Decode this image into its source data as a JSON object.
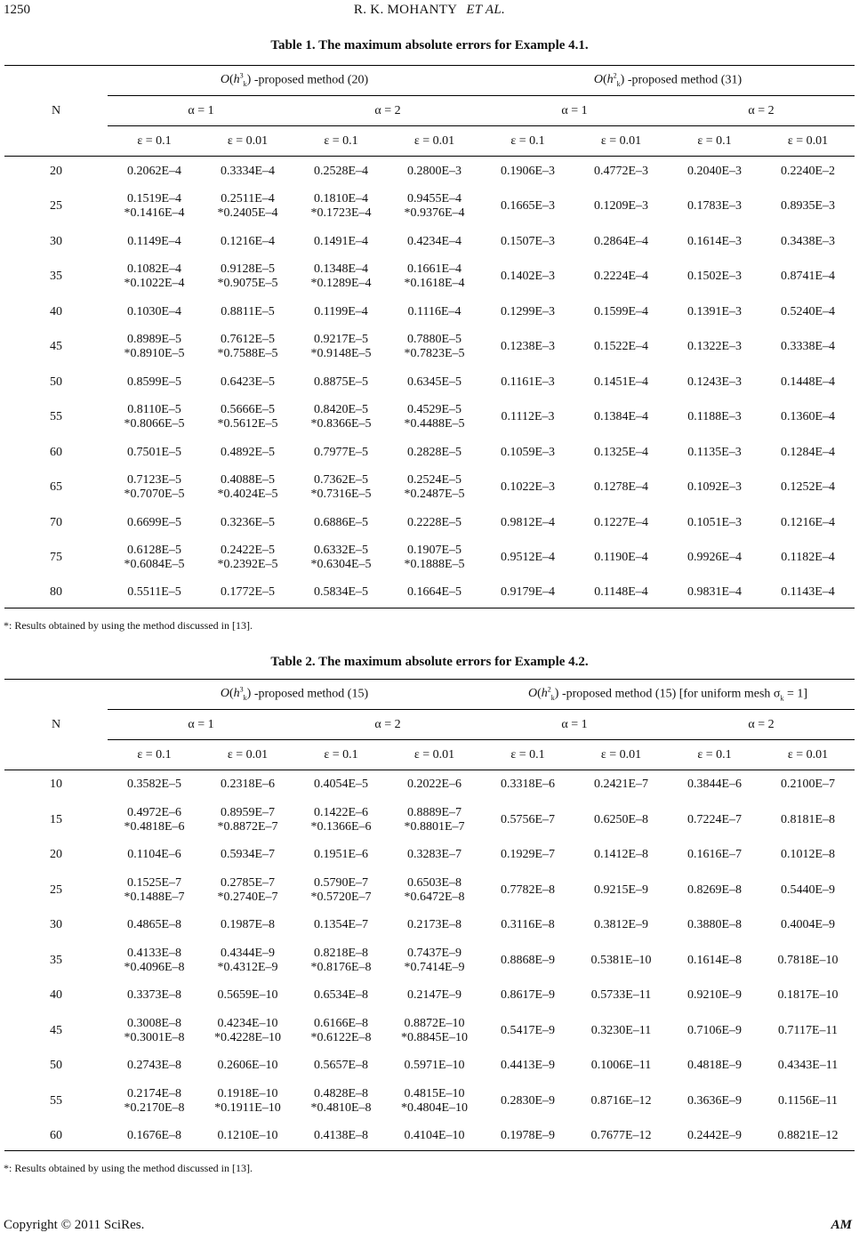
{
  "page": {
    "number": "1250",
    "running_head": "R. K. MOHANTY",
    "running_head_italic": "ET   AL.",
    "copyright": "Copyright © 2011 SciRes.",
    "journal": "AM"
  },
  "table1": {
    "title": "Table 1. The maximum absolute errors for Example 4.1.",
    "n_header": "N",
    "methods": [
      {
        "O": "O",
        "base": "h",
        "sub": "k",
        "sup": "3",
        "label": " -proposed method (20)"
      },
      {
        "O": "O",
        "base": "h",
        "sub": "k",
        "sup": "2",
        "label": " -proposed method (31)"
      }
    ],
    "alphas": [
      "α = 1",
      "α = 2",
      "α = 1",
      "α = 2"
    ],
    "epsilons": [
      "ε = 0.1",
      "ε = 0.01",
      "ε = 0.1",
      "ε = 0.01",
      "ε = 0.1",
      "ε = 0.01",
      "ε = 0.1",
      "ε = 0.01"
    ],
    "rows": [
      {
        "n": "20",
        "cells": [
          "0.2062E–4",
          "0.3334E–4",
          "0.2528E–4",
          "0.2800E–3",
          "0.1906E–3",
          "0.4772E–3",
          "0.2040E–3",
          "0.2240E–2"
        ]
      },
      {
        "n": "25",
        "cells": [
          [
            "0.1519E–4",
            "*0.1416E–4"
          ],
          [
            "0.2511E–4",
            "*0.2405E–4"
          ],
          [
            "0.1810E–4",
            "*0.1723E–4"
          ],
          [
            "0.9455E–4",
            "*0.9376E–4"
          ],
          "0.1665E–3",
          "0.1209E–3",
          "0.1783E–3",
          "0.8935E–3"
        ]
      },
      {
        "n": "30",
        "cells": [
          "0.1149E–4",
          "0.1216E–4",
          "0.1491E–4",
          "0.4234E–4",
          "0.1507E–3",
          "0.2864E–4",
          "0.1614E–3",
          "0.3438E–3"
        ]
      },
      {
        "n": "35",
        "cells": [
          [
            "0.1082E–4",
            "*0.1022E–4"
          ],
          [
            "0.9128E–5",
            "*0.9075E–5"
          ],
          [
            "0.1348E–4",
            "*0.1289E–4"
          ],
          [
            "0.1661E–4",
            "*0.1618E–4"
          ],
          "0.1402E–3",
          "0.2224E–4",
          "0.1502E–3",
          "0.8741E–4"
        ]
      },
      {
        "n": "40",
        "cells": [
          "0.1030E–4",
          "0.8811E–5",
          "0.1199E–4",
          "0.1116E–4",
          "0.1299E–3",
          "0.1599E–4",
          "0.1391E–3",
          "0.5240E–4"
        ]
      },
      {
        "n": "45",
        "cells": [
          [
            "0.8989E–5",
            "*0.8910E–5"
          ],
          [
            "0.7612E–5",
            "*0.7588E–5"
          ],
          [
            "0.9217E–5",
            "*0.9148E–5"
          ],
          [
            "0.7880E–5",
            "*0.7823E–5"
          ],
          "0.1238E–3",
          "0.1522E–4",
          "0.1322E–3",
          "0.3338E–4"
        ]
      },
      {
        "n": "50",
        "cells": [
          "0.8599E–5",
          "0.6423E–5",
          "0.8875E–5",
          "0.6345E–5",
          "0.1161E–3",
          "0.1451E–4",
          "0.1243E–3",
          "0.1448E–4"
        ]
      },
      {
        "n": "55",
        "cells": [
          [
            "0.8110E–5",
            "*0.8066E–5"
          ],
          [
            "0.5666E–5",
            "*0.5612E–5"
          ],
          [
            "0.8420E–5",
            "*0.8366E–5"
          ],
          [
            "0.4529E–5",
            "*0.4488E–5"
          ],
          "0.1112E–3",
          "0.1384E–4",
          "0.1188E–3",
          "0.1360E–4"
        ]
      },
      {
        "n": "60",
        "cells": [
          "0.7501E–5",
          "0.4892E–5",
          "0.7977E–5",
          "0.2828E–5",
          "0.1059E–3",
          "0.1325E–4",
          "0.1135E–3",
          "0.1284E–4"
        ]
      },
      {
        "n": "65",
        "cells": [
          [
            "0.7123E–5",
            "*0.7070E–5"
          ],
          [
            "0.4088E–5",
            "*0.4024E–5"
          ],
          [
            "0.7362E–5",
            "*0.7316E–5"
          ],
          [
            "0.2524E–5",
            "*0.2487E–5"
          ],
          "0.1022E–3",
          "0.1278E–4",
          "0.1092E–3",
          "0.1252E–4"
        ]
      },
      {
        "n": "70",
        "cells": [
          "0.6699E–5",
          "0.3236E–5",
          "0.6886E–5",
          "0.2228E–5",
          "0.9812E–4",
          "0.1227E–4",
          "0.1051E–3",
          "0.1216E–4"
        ]
      },
      {
        "n": "75",
        "cells": [
          [
            "0.6128E–5",
            "*0.6084E–5"
          ],
          [
            "0.2422E–5",
            "*0.2392E–5"
          ],
          [
            "0.6332E–5",
            "*0.6304E–5"
          ],
          [
            "0.1907E–5",
            "*0.1888E–5"
          ],
          "0.9512E–4",
          "0.1190E–4",
          "0.9926E–4",
          "0.1182E–4"
        ]
      },
      {
        "n": "80",
        "cells": [
          "0.5511E–5",
          "0.1772E–5",
          "0.5834E–5",
          "0.1664E–5",
          "0.9179E–4",
          "0.1148E–4",
          "0.9831E–4",
          "0.1143E–4"
        ]
      }
    ],
    "footnote": "*: Results obtained by using the method discussed in [13]."
  },
  "table2": {
    "title": "Table 2. The maximum absolute errors for Example 4.2.",
    "n_header": "N",
    "methods": [
      {
        "O": "O",
        "base": "h",
        "sub": "k",
        "sup": "3",
        "label": " -proposed method (15)"
      },
      {
        "O": "O",
        "base": "h",
        "sub": "k",
        "sup": "2",
        "label": " -proposed method (15) [for uniform mesh  σ",
        "label_sub": "k",
        "label_end": " = 1]"
      }
    ],
    "alphas": [
      "α = 1",
      "α = 2",
      "α = 1",
      "α = 2"
    ],
    "epsilons": [
      "ε = 0.1",
      "ε = 0.01",
      "ε = 0.1",
      "ε = 0.01",
      "ε = 0.1",
      "ε = 0.01",
      "ε = 0.1",
      "ε = 0.01"
    ],
    "rows": [
      {
        "n": "10",
        "cells": [
          "0.3582E–5",
          "0.2318E–6",
          "0.4054E–5",
          "0.2022E–6",
          "0.3318E–6",
          "0.2421E–7",
          "0.3844E–6",
          "0.2100E–7"
        ]
      },
      {
        "n": "15",
        "cells": [
          [
            "0.4972E–6",
            "*0.4818E–6"
          ],
          [
            "0.8959E–7",
            "*0.8872E–7"
          ],
          [
            "0.1422E–6",
            "*0.1366E–6"
          ],
          [
            "0.8889E–7",
            "*0.8801E–7"
          ],
          "0.5756E–7",
          "0.6250E–8",
          "0.7224E–7",
          "0.8181E–8"
        ]
      },
      {
        "n": "20",
        "cells": [
          "0.1104E–6",
          "0.5934E–7",
          "0.1951E–6",
          "0.3283E–7",
          "0.1929E–7",
          "0.1412E–8",
          "0.1616E–7",
          "0.1012E–8"
        ]
      },
      {
        "n": "25",
        "cells": [
          [
            "0.1525E–7",
            "*0.1488E–7"
          ],
          [
            "0.2785E–7",
            "*0.2740E–7"
          ],
          [
            "0.5790E–7",
            "*0.5720E–7"
          ],
          [
            "0.6503E–8",
            "*0.6472E–8"
          ],
          "0.7782E–8",
          "0.9215E–9",
          "0.8269E–8",
          "0.5440E–9"
        ]
      },
      {
        "n": "30",
        "cells": [
          "0.4865E–8",
          "0.1987E–8",
          "0.1354E–7",
          "0.2173E–8",
          "0.3116E–8",
          "0.3812E–9",
          "0.3880E–8",
          "0.4004E–9"
        ]
      },
      {
        "n": "35",
        "cells": [
          [
            "0.4133E–8",
            "*0.4096E–8"
          ],
          [
            "0.4344E–9",
            "*0.4312E–9"
          ],
          [
            "0.8218E–8",
            "*0.8176E–8"
          ],
          [
            "0.7437E–9",
            "*0.7414E–9"
          ],
          "0.8868E–9",
          "0.5381E–10",
          "0.1614E–8",
          "0.7818E–10"
        ]
      },
      {
        "n": "40",
        "cells": [
          "0.3373E–8",
          "0.5659E–10",
          "0.6534E–8",
          "0.2147E–9",
          "0.8617E–9",
          "0.5733E–11",
          "0.9210E–9",
          "0.1817E–10"
        ]
      },
      {
        "n": "45",
        "cells": [
          [
            "0.3008E–8",
            "*0.3001E–8"
          ],
          [
            "0.4234E–10",
            "*0.4228E–10"
          ],
          [
            "0.6166E–8",
            "*0.6122E–8"
          ],
          [
            "0.8872E–10",
            "*0.8845E–10"
          ],
          "0.5417E–9",
          "0.3230E–11",
          "0.7106E–9",
          "0.7117E–11"
        ]
      },
      {
        "n": "50",
        "cells": [
          "0.2743E–8",
          "0.2606E–10",
          "0.5657E–8",
          "0.5971E–10",
          "0.4413E–9",
          "0.1006E–11",
          "0.4818E–9",
          "0.4343E–11"
        ]
      },
      {
        "n": "55",
        "cells": [
          [
            "0.2174E–8",
            "*0.2170E–8"
          ],
          [
            "0.1918E–10",
            "*0.1911E–10"
          ],
          [
            "0.4828E–8",
            "*0.4810E–8"
          ],
          [
            "0.4815E–10",
            "*0.4804E–10"
          ],
          "0.2830E–9",
          "0.8716E–12",
          "0.3636E–9",
          "0.1156E–11"
        ]
      },
      {
        "n": "60",
        "cells": [
          "0.1676E–8",
          "0.1210E–10",
          "0.4138E–8",
          "0.4104E–10",
          "0.1978E–9",
          "0.7677E–12",
          "0.2442E–9",
          "0.8821E–12"
        ]
      }
    ],
    "footnote": "*: Results obtained by using the method discussed in [13]."
  }
}
